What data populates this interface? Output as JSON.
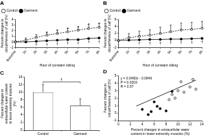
{
  "chart_data": [
    {
      "type": "line",
      "title": "A",
      "categories": [
        "Baseline",
        "1h",
        "2h",
        "3h",
        "4h",
        "5h",
        "6h",
        "7h",
        "8h"
      ],
      "x_label": "Hour of constant sitting",
      "y_label": "Percent changes in circumference of calf (%)",
      "ylim": [
        -1,
        4
      ],
      "yticks": [
        -1,
        0,
        1,
        2,
        3,
        4
      ],
      "grid": false,
      "legend": "top-left",
      "series": [
        {
          "name": "Control",
          "color": "#000000",
          "marker": "circle_open",
          "line_style": "dashed",
          "values": [
            0,
            0.3,
            0.8,
            1.2,
            1.5,
            1.8,
            2.1,
            2.4,
            2.6
          ],
          "errors": [
            0,
            0.4,
            0.5,
            0.5,
            0.6,
            0.6,
            0.6,
            0.7,
            0.7
          ]
        },
        {
          "name": "Garment",
          "color": "#000000",
          "marker": "circle",
          "line_style": "solid",
          "values": [
            0,
            0,
            0.1,
            0.2,
            0.3,
            0.4,
            0.4,
            0.6,
            0.7
          ]
        }
      ],
      "annotations": [
        {
          "text": "*",
          "series": "Control",
          "position": "above",
          "categories": [
            "3h",
            "4h",
            "5h",
            "6h",
            "7h",
            "8h"
          ]
        },
        {
          "text": "†",
          "series": "Garment",
          "position": "below",
          "categories": [
            "2h",
            "3h",
            "4h",
            "5h",
            "6h",
            "7h",
            "8h"
          ]
        }
      ]
    },
    {
      "type": "line",
      "title": "B",
      "categories": [
        "Baseline",
        "1h",
        "2h",
        "3h",
        "4h",
        "5h",
        "6h",
        "7h",
        "8h"
      ],
      "x_label": "Hour of constant sitting",
      "y_label": "Percent changes in circumference of calf (%)",
      "ylim": [
        -2,
        6
      ],
      "yticks": [
        -2,
        0,
        2,
        4,
        6
      ],
      "grid": false,
      "legend": "top-left",
      "series": [
        {
          "name": "Control",
          "color": "#000000",
          "marker": "circle_open",
          "line_style": "dashed",
          "values": [
            0,
            0.8,
            1.2,
            1.5,
            2.0,
            2.5,
            3.0,
            3.2,
            3.5
          ],
          "errors": [
            0,
            1.2,
            1.5,
            1.6,
            1.8,
            1.9,
            2.0,
            2.0,
            2.0
          ]
        },
        {
          "name": "Garment",
          "color": "#000000",
          "marker": "circle",
          "line_style": "solid",
          "values": [
            0,
            0.1,
            0.2,
            0.3,
            0.3,
            0.4,
            0.4,
            0.5,
            0.6
          ]
        }
      ],
      "annotations": [
        {
          "text": "†",
          "series": "Garment",
          "position": "below",
          "categories": [
            "2h",
            "3h",
            "4h",
            "5h",
            "6h",
            "7h",
            "8h"
          ]
        }
      ]
    },
    {
      "type": "bar",
      "title": "C",
      "categories": [
        "Control",
        "Garment"
      ],
      "values": [
        10,
        6.5
      ],
      "errors": [
        2,
        1.8
      ],
      "colors": [
        "#ffffff",
        "#ffffff"
      ],
      "y_label": "Percent changes in extracellular water content in lower extremity muscles (%)",
      "ylim": [
        0,
        14
      ],
      "yticks": [
        0,
        2,
        4,
        6,
        8,
        10,
        12,
        14
      ],
      "grid": false,
      "annotations": [
        {
          "text": "†",
          "categories": [
            "Control",
            "Garment"
          ]
        }
      ]
    },
    {
      "type": "scatter",
      "title": "D",
      "x_label": "Percent changes in extracellular water content in lower extremity muscles (%)",
      "y_label": "Percent changes in circumference of calf (%)",
      "xlim": [
        0,
        14
      ],
      "xticks": [
        0,
        2,
        4,
        6,
        8,
        10,
        12,
        14
      ],
      "ylim": [
        -1,
        5
      ],
      "yticks": [
        -1,
        0,
        1,
        2,
        3,
        4,
        5
      ],
      "grid": false,
      "series": [
        {
          "color": "#000000",
          "marker": "circle_open",
          "x": [
            8.5,
            9,
            10,
            10.5,
            11,
            12,
            12.5,
            13,
            9.5
          ],
          "values": [
            1.8,
            2.5,
            3.0,
            4.2,
            2.8,
            3.5,
            4.5,
            3.2,
            2.0
          ]
        },
        {
          "color": "#000000",
          "marker": "circle",
          "x": [
            4,
            5,
            5.5,
            6,
            6.5,
            7,
            8,
            9
          ],
          "values": [
            0.5,
            -0.2,
            0.2,
            1.5,
            0.9,
            0.6,
            0.3,
            2.9
          ]
        }
      ],
      "fit": {
        "slope": 0.346,
        "intercept": -0.0946,
        "x": [
          3,
          13
        ]
      },
      "annotations": [
        {
          "text": "y = 0.3460x - 0.0946"
        },
        {
          "text": "P = 0.0203"
        },
        {
          "text": "R = 0.57"
        }
      ]
    }
  ]
}
